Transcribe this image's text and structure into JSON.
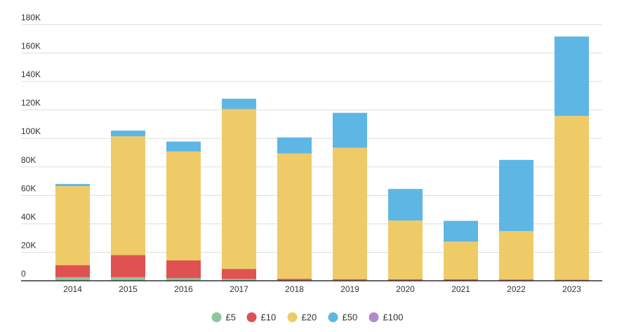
{
  "chart_data": {
    "type": "bar",
    "stacked": true,
    "categories": [
      "2014",
      "2015",
      "2016",
      "2017",
      "2018",
      "2019",
      "2020",
      "2021",
      "2022",
      "2023"
    ],
    "series": [
      {
        "name": "£5",
        "color": "#8cc7a0",
        "values": [
          2500,
          2500,
          1800,
          1300,
          300,
          300,
          200,
          200,
          200,
          200
        ]
      },
      {
        "name": "£10",
        "color": "#e05252",
        "values": [
          8500,
          15500,
          12500,
          7000,
          1100,
          800,
          800,
          800,
          700,
          500
        ]
      },
      {
        "name": "£20",
        "color": "#efcb68",
        "values": [
          55500,
          83500,
          76500,
          112300,
          88000,
          92400,
          41300,
          26500,
          34000,
          115100
        ]
      },
      {
        "name": "£50",
        "color": "#5eb6e4",
        "values": [
          1500,
          4000,
          7000,
          7300,
          11300,
          24500,
          22200,
          14600,
          50000,
          55800
        ]
      },
      {
        "name": "£100",
        "color": "#ac8ccf",
        "values": [
          0,
          0,
          0,
          0,
          0,
          0,
          0,
          0,
          0,
          0
        ]
      }
    ],
    "yticks": [
      "0",
      "20K",
      "40K",
      "60K",
      "80K",
      "100K",
      "120K",
      "140K",
      "160K",
      "180K"
    ],
    "ylim": [
      0,
      180000
    ],
    "xlabel": "",
    "ylabel": "",
    "title": "",
    "grid": true,
    "legend_position": "bottom-center"
  }
}
